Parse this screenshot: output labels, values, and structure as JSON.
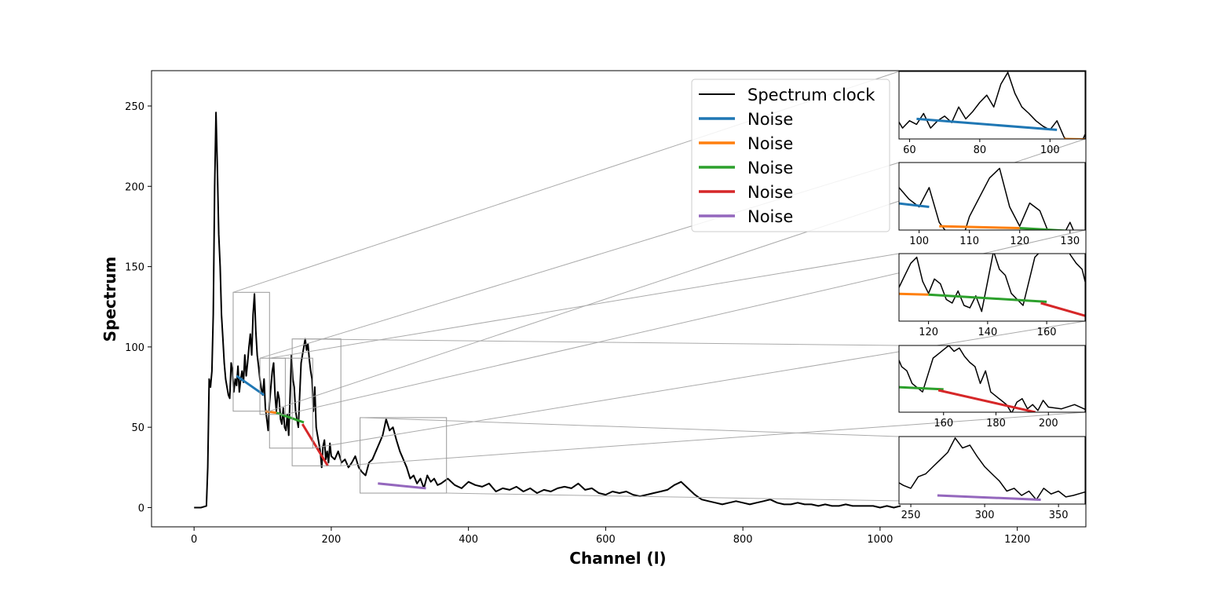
{
  "chart_data": {
    "type": "line",
    "xlabel": "Channel (l)",
    "ylabel": "Spectrum",
    "xlim": [
      -62,
      1300
    ],
    "ylim": [
      -12,
      272
    ],
    "xticks": [
      0,
      200,
      400,
      600,
      800,
      1000,
      1200
    ],
    "yticks": [
      0,
      50,
      100,
      150,
      200,
      250
    ],
    "grid": false,
    "legend_position": "top-right",
    "series": [
      {
        "name": "Spectrum clock",
        "color": "#000000",
        "x": [
          0,
          10,
          18,
          20,
          22,
          24,
          26,
          28,
          30,
          32,
          34,
          36,
          38,
          40,
          42,
          44,
          46,
          48,
          50,
          52,
          54,
          56,
          58,
          60,
          62,
          64,
          66,
          68,
          70,
          72,
          74,
          76,
          78,
          80,
          82,
          84,
          86,
          88,
          90,
          92,
          94,
          96,
          98,
          100,
          102,
          104,
          106,
          108,
          110,
          112,
          114,
          116,
          118,
          120,
          122,
          124,
          126,
          128,
          130,
          132,
          134,
          136,
          138,
          140,
          142,
          144,
          146,
          148,
          150,
          152,
          154,
          156,
          158,
          160,
          162,
          164,
          166,
          168,
          170,
          172,
          174,
          176,
          178,
          180,
          182,
          184,
          186,
          188,
          190,
          192,
          194,
          196,
          198,
          200,
          205,
          210,
          215,
          220,
          225,
          230,
          235,
          240,
          245,
          250,
          255,
          260,
          265,
          270,
          275,
          280,
          285,
          290,
          295,
          300,
          305,
          310,
          315,
          320,
          325,
          330,
          335,
          340,
          345,
          350,
          355,
          360,
          370,
          380,
          390,
          400,
          410,
          420,
          430,
          440,
          450,
          460,
          470,
          480,
          490,
          500,
          510,
          520,
          530,
          540,
          550,
          560,
          570,
          580,
          590,
          600,
          610,
          620,
          630,
          640,
          650,
          660,
          670,
          680,
          690,
          700,
          710,
          720,
          730,
          740,
          750,
          760,
          770,
          780,
          790,
          800,
          810,
          820,
          830,
          840,
          850,
          860,
          870,
          880,
          890,
          900,
          910,
          920,
          930,
          940,
          950,
          960,
          970,
          980,
          990,
          1000,
          1010,
          1020,
          1030
        ],
        "y": [
          0,
          0,
          1,
          25,
          80,
          75,
          85,
          120,
          200,
          246,
          210,
          170,
          150,
          120,
          105,
          90,
          80,
          75,
          70,
          68,
          90,
          85,
          72,
          80,
          76,
          88,
          72,
          80,
          85,
          78,
          95,
          82,
          90,
          100,
          108,
          95,
          120,
          133,
          110,
          95,
          88,
          80,
          74,
          70,
          80,
          62,
          55,
          48,
          65,
          75,
          85,
          90,
          70,
          60,
          72,
          68,
          55,
          52,
          62,
          50,
          48,
          58,
          45,
          70,
          95,
          80,
          75,
          60,
          55,
          50,
          70,
          90,
          95,
          100,
          105,
          98,
          102,
          92,
          85,
          80,
          60,
          75,
          50,
          45,
          40,
          35,
          25,
          38,
          42,
          30,
          35,
          28,
          40,
          32,
          30,
          35,
          28,
          30,
          25,
          28,
          32,
          25,
          22,
          20,
          28,
          30,
          35,
          40,
          45,
          55,
          48,
          50,
          42,
          35,
          30,
          25,
          18,
          20,
          15,
          18,
          12,
          20,
          16,
          18,
          14,
          15,
          18,
          14,
          12,
          16,
          14,
          13,
          15,
          10,
          12,
          11,
          13,
          10,
          12,
          9,
          11,
          10,
          12,
          13,
          12,
          15,
          11,
          12,
          9,
          8,
          10,
          9,
          10,
          8,
          7,
          8,
          9,
          10,
          11,
          14,
          16,
          12,
          8,
          5,
          4,
          3,
          2,
          3,
          4,
          3,
          2,
          3,
          4,
          5,
          3,
          2,
          2,
          3,
          2,
          2,
          1,
          2,
          1,
          1,
          2,
          1,
          1,
          1,
          1,
          0,
          1,
          0,
          1
        ]
      },
      {
        "name": "Noise",
        "color": "#1f77b4",
        "x": [
          62,
          102
        ],
        "y": [
          82,
          70
        ]
      },
      {
        "name": "Noise",
        "color": "#ff7f0e",
        "x": [
          104,
          120
        ],
        "y": [
          60,
          59
        ]
      },
      {
        "name": "Noise",
        "color": "#2ca02c",
        "x": [
          120,
          160
        ],
        "y": [
          59,
          53
        ]
      },
      {
        "name": "Noise",
        "color": "#d62728",
        "x": [
          158,
          195
        ],
        "y": [
          52,
          26
        ]
      },
      {
        "name": "Noise",
        "color": "#9467bd",
        "x": [
          268,
          338
        ],
        "y": [
          15,
          12
        ]
      }
    ],
    "insets": [
      {
        "xlim": [
          57,
          110
        ],
        "ylim": [
          60,
          134
        ],
        "xticks": [
          60,
          80,
          100
        ]
      },
      {
        "xlim": [
          96,
          133
        ],
        "ylim": [
          58,
          93
        ],
        "xticks": [
          100,
          110,
          120,
          130
        ]
      },
      {
        "xlim": [
          110,
          173
        ],
        "ylim": [
          37,
          93
        ],
        "xticks": [
          120,
          140,
          160
        ]
      },
      {
        "xlim": [
          143,
          214
        ],
        "ylim": [
          26,
          105
        ],
        "xticks": [
          160,
          180,
          200
        ]
      },
      {
        "xlim": [
          242,
          368
        ],
        "ylim": [
          9,
          56
        ],
        "xticks": [
          250,
          300,
          350
        ]
      }
    ]
  }
}
